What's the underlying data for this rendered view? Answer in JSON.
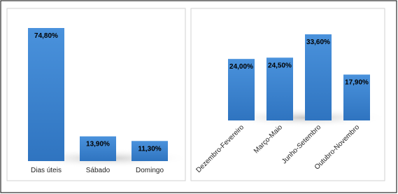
{
  "chart_data": [
    {
      "type": "bar",
      "categories": [
        "Dias úteis",
        "Sábado",
        "Domingo"
      ],
      "values": [
        74.8,
        13.9,
        11.3
      ],
      "value_labels": [
        "74,80%",
        "13,90%",
        "11,30%"
      ],
      "color": "#3a83cf"
    },
    {
      "type": "bar",
      "categories": [
        "Dezembro-Fevereiro",
        "Março-Maio",
        "Junho-Setembro",
        "Outubro-Novembro"
      ],
      "values": [
        24.0,
        24.5,
        33.6,
        17.9
      ],
      "value_labels": [
        "24,00%",
        "24,50%",
        "33,60%",
        "17,90%"
      ],
      "color": "#3a83cf"
    }
  ]
}
